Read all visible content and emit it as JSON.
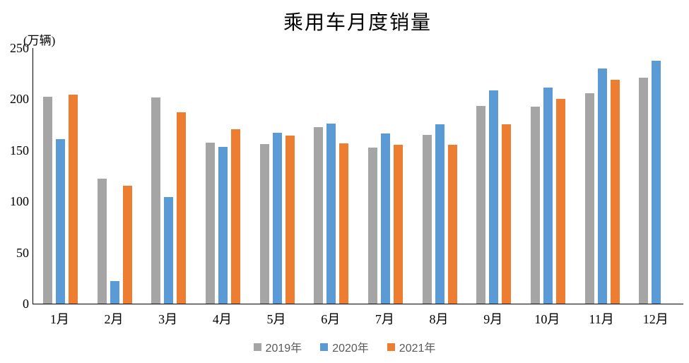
{
  "chart_data": {
    "type": "bar",
    "title": "乘用车月度销量",
    "unit_label": "(万辆)",
    "categories": [
      "1月",
      "2月",
      "3月",
      "4月",
      "5月",
      "6月",
      "7月",
      "8月",
      "9月",
      "10月",
      "11月",
      "12月"
    ],
    "series": [
      {
        "name": "2019年",
        "color": "#A5A5A5",
        "values": [
          202.2,
          121.9,
          201.9,
          157.5,
          156.1,
          172.8,
          152.8,
          165.3,
          193.1,
          192.8,
          205.7,
          221.3
        ]
      },
      {
        "name": "2020年",
        "color": "#5B9BD5",
        "values": [
          160.7,
          22.4,
          104.3,
          153.6,
          167.4,
          176.4,
          166.5,
          175.5,
          208.8,
          211.0,
          229.7,
          237.5
        ]
      },
      {
        "name": "2021年",
        "color": "#ED7D31",
        "values": [
          204.5,
          115.5,
          187.4,
          170.4,
          164.6,
          156.9,
          155.1,
          155.2,
          175.1,
          200.4,
          219.2,
          null
        ]
      }
    ],
    "y_ticks": [
      0,
      50,
      100,
      150,
      200,
      250
    ],
    "ylim": [
      0,
      250
    ],
    "xlabel": "",
    "ylabel": "",
    "grid": false,
    "legend_position": "bottom",
    "axis_color": "#000000",
    "background_color": "#FFFFFF"
  }
}
